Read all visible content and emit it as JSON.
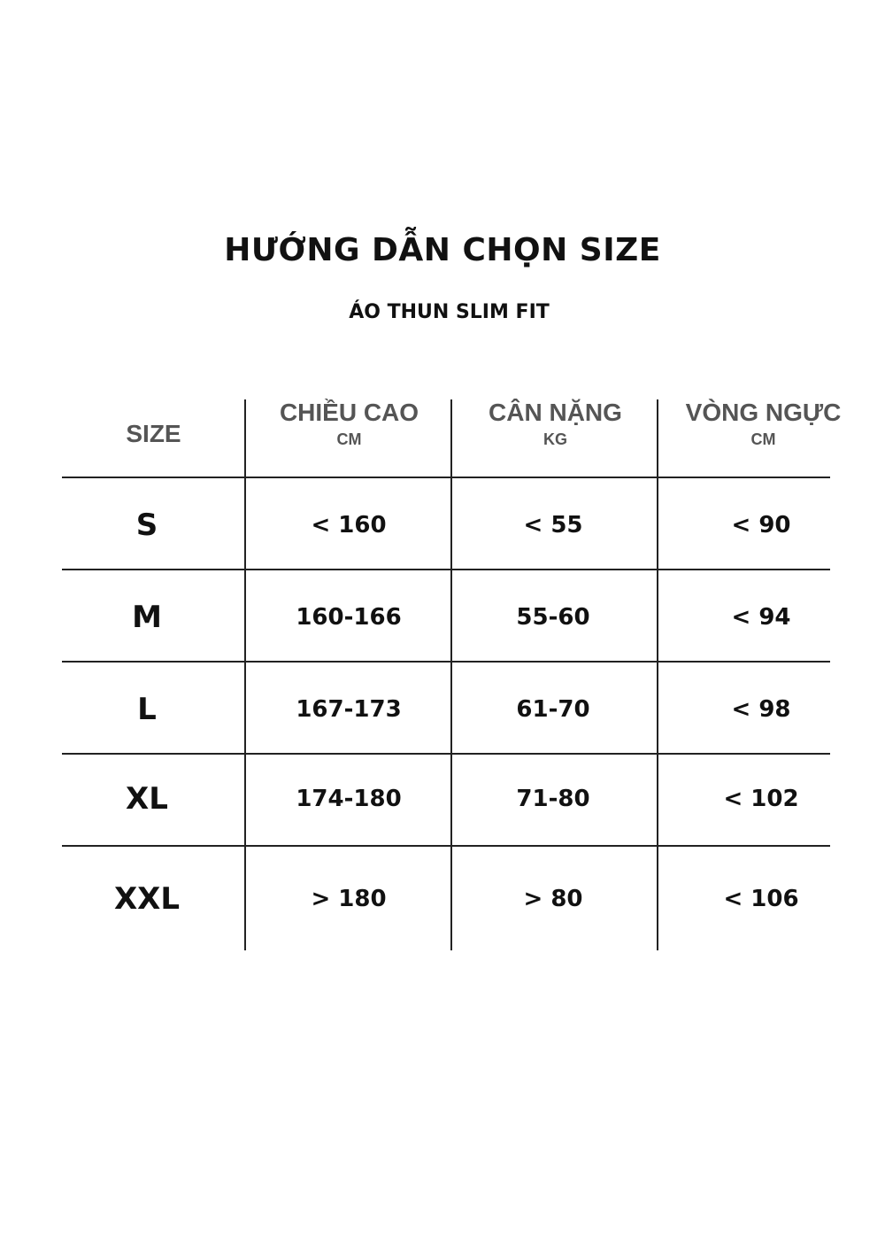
{
  "title": "HƯỚNG DẪN CHỌN SIZE",
  "subtitle": "ÁO THUN SLIM FIT",
  "table": {
    "headers": [
      {
        "label": "SIZE",
        "unit": ""
      },
      {
        "label": "CHIỀU CAO",
        "unit": "CM"
      },
      {
        "label": "CÂN NẶNG",
        "unit": "KG"
      },
      {
        "label": "VÒNG NGỰC",
        "unit": "CM"
      }
    ],
    "rows": [
      [
        "S",
        "< 160",
        "< 55",
        "< 90"
      ],
      [
        "M",
        "160-166",
        "55-60",
        "< 94"
      ],
      [
        "L",
        "167-173",
        "61-70",
        "< 98"
      ],
      [
        "XL",
        "174-180",
        "71-80",
        "< 102"
      ],
      [
        "XXL",
        "> 180",
        "> 80",
        "< 106"
      ]
    ]
  }
}
